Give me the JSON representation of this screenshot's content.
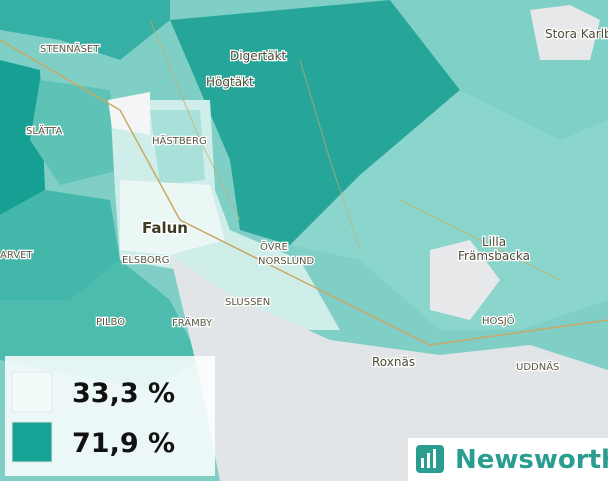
{
  "places": [
    "STENNÄSET",
    "SLÄTTA",
    "Digertäkt",
    "Högtäkt",
    "HÄSTBERG",
    "Falun",
    "ELSBORG",
    "ÖVRE",
    "NORSLUND",
    "ARVET",
    "SLUSSEN",
    "PILBO",
    "FRÄMBY",
    "Lilla",
    "Främsbacka",
    "HOSJÖ",
    "Roxnäs",
    "UDDNÄS",
    "Stora Karlbo"
  ],
  "legend": {
    "items": [
      {
        "value": 33.3,
        "label": "33,3 %",
        "color": "#f3fbfa"
      },
      {
        "value": 71.9,
        "label": "71,9 %",
        "color": "#16a295"
      }
    ]
  },
  "brand": "Newsworthy"
}
